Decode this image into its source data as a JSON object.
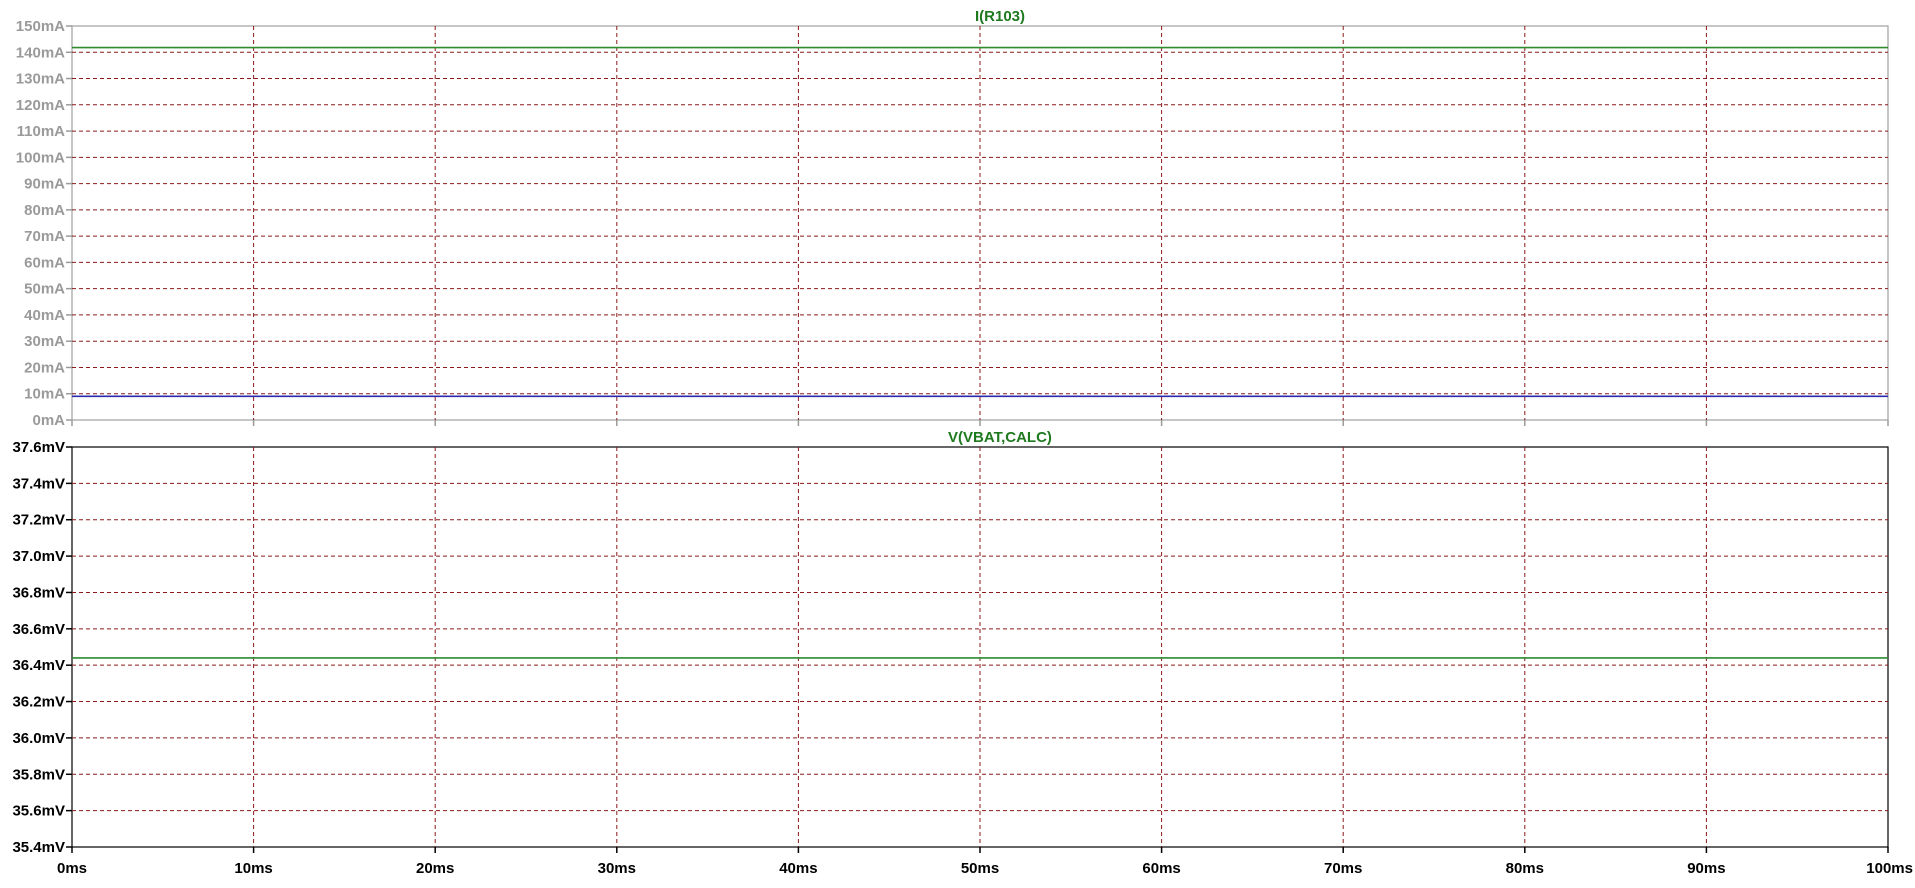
{
  "colors": {
    "grid": "#8b1a1a",
    "top_axis": "#9a9a9a",
    "bottom_axis": "#000000",
    "title": "#1f7a1f",
    "trace_green": "#2e8b2e",
    "trace_blue": "#2a2ab0"
  },
  "chart_data": [
    {
      "type": "line",
      "title": "I(R103)",
      "xlabel": "",
      "ylabel": "",
      "x_unit": "ms",
      "y_unit": "mA",
      "xlim": [
        0,
        100
      ],
      "ylim": [
        0,
        150
      ],
      "x_ticks": [
        "0ms",
        "10ms",
        "20ms",
        "30ms",
        "40ms",
        "50ms",
        "60ms",
        "70ms",
        "80ms",
        "90ms",
        "100ms"
      ],
      "y_ticks": [
        "0mA",
        "10mA",
        "20mA",
        "30mA",
        "40mA",
        "50mA",
        "60mA",
        "70mA",
        "80mA",
        "90mA",
        "100mA",
        "110mA",
        "120mA",
        "130mA",
        "140mA",
        "150mA"
      ],
      "grid": true,
      "series": [
        {
          "color": "#2e8b2e",
          "x": [
            0,
            100
          ],
          "y": [
            141.8,
            141.8
          ]
        },
        {
          "color": "#2a2ab0",
          "x": [
            0,
            100
          ],
          "y": [
            9.0,
            9.0
          ]
        }
      ]
    },
    {
      "type": "line",
      "title": "V(VBAT,CALC)",
      "xlabel": "",
      "ylabel": "",
      "x_unit": "ms",
      "y_unit": "mV",
      "xlim": [
        0,
        100
      ],
      "ylim": [
        35.4,
        37.6
      ],
      "x_ticks": [
        "0ms",
        "10ms",
        "20ms",
        "30ms",
        "40ms",
        "50ms",
        "60ms",
        "70ms",
        "80ms",
        "90ms",
        "100ms"
      ],
      "y_ticks": [
        "35.4mV",
        "35.6mV",
        "35.8mV",
        "36.0mV",
        "36.2mV",
        "36.4mV",
        "36.6mV",
        "36.8mV",
        "37.0mV",
        "37.2mV",
        "37.4mV",
        "37.6mV"
      ],
      "grid": true,
      "series": [
        {
          "color": "#2e8b2e",
          "x": [
            0,
            100
          ],
          "y": [
            36.44,
            36.44
          ]
        }
      ]
    }
  ]
}
